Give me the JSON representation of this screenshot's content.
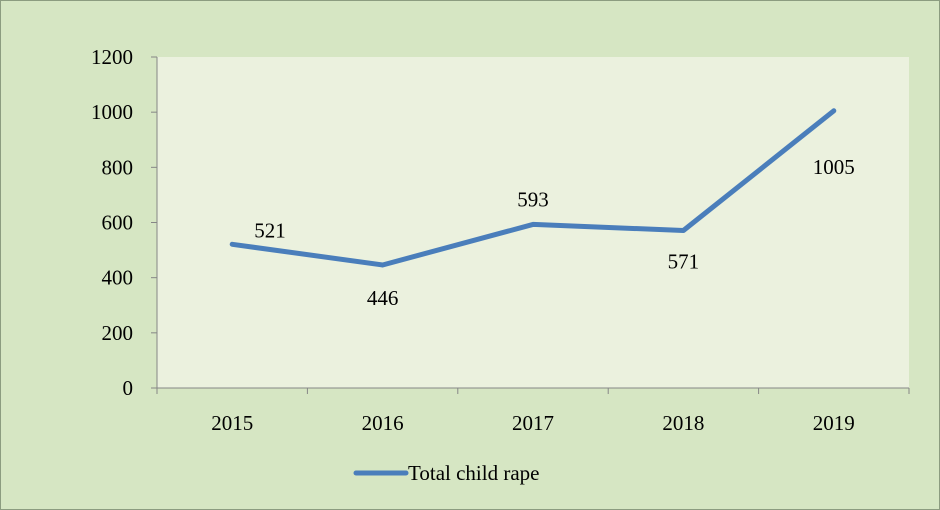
{
  "chart_data": {
    "type": "line",
    "title": "",
    "xlabel": "",
    "ylabel": "",
    "categories": [
      "2015",
      "2016",
      "2017",
      "2018",
      "2019"
    ],
    "series": [
      {
        "name": "Total child rape",
        "values": [
          521,
          446,
          593,
          571,
          1005
        ],
        "color": "#4a7ebb"
      }
    ],
    "ylim": [
      0,
      1200
    ],
    "yticks": [
      0,
      200,
      400,
      600,
      800,
      1000,
      1200
    ],
    "grid": false,
    "legend": "bottom",
    "plot_background": "#ebf1de",
    "chart_background": "#d6e6c3"
  }
}
